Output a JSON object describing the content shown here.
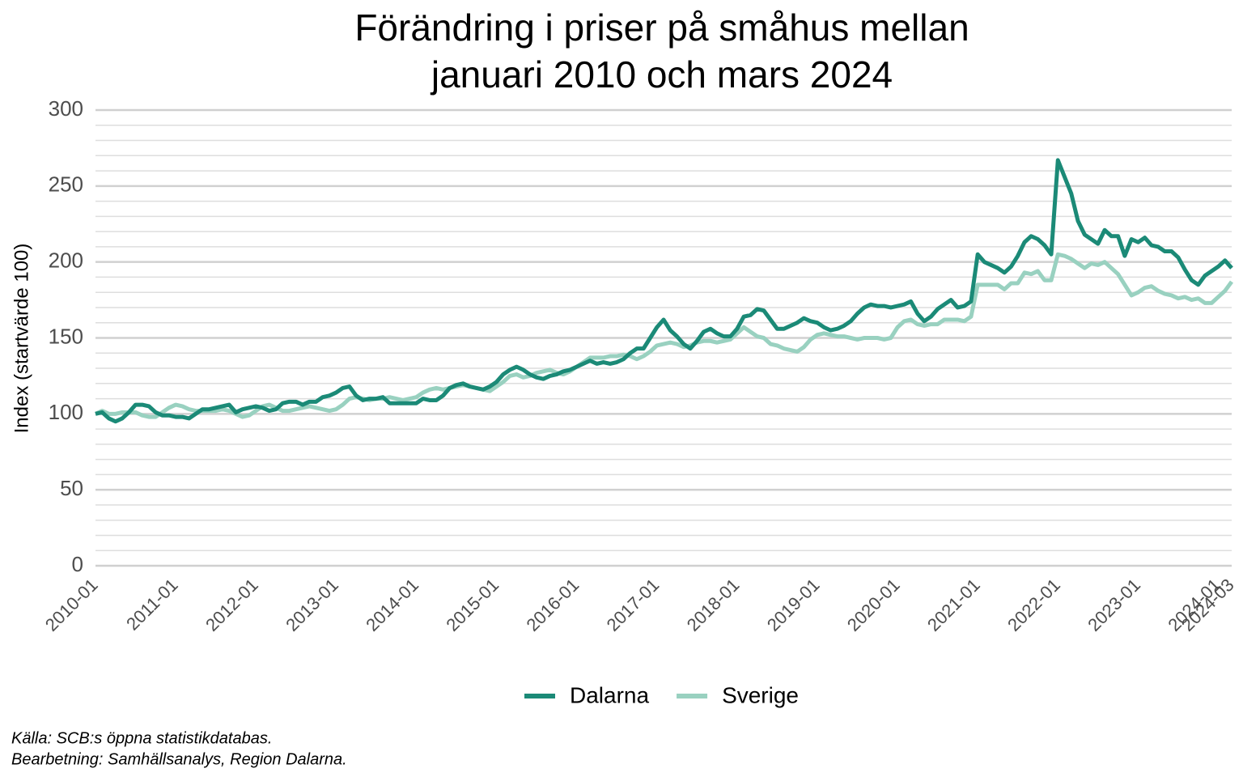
{
  "chart_data": {
    "type": "line",
    "title": [
      "Förändring i priser på småhus mellan",
      "januari 2010 och mars 2024"
    ],
    "y_label": "Index (startvärde 100)",
    "caption": [
      "Källa: SCB:s öppna statistikdatabas.",
      "Bearbetning: Samhällsanalys, Region Dalarna."
    ],
    "x": [
      "2010-01",
      "2010-02",
      "2010-03",
      "2010-04",
      "2010-05",
      "2010-06",
      "2010-07",
      "2010-08",
      "2010-09",
      "2010-10",
      "2010-11",
      "2010-12",
      "2011-01",
      "2011-02",
      "2011-03",
      "2011-04",
      "2011-05",
      "2011-06",
      "2011-07",
      "2011-08",
      "2011-09",
      "2011-10",
      "2011-11",
      "2011-12",
      "2012-01",
      "2012-02",
      "2012-03",
      "2012-04",
      "2012-05",
      "2012-06",
      "2012-07",
      "2012-08",
      "2012-09",
      "2012-10",
      "2012-11",
      "2012-12",
      "2013-01",
      "2013-02",
      "2013-03",
      "2013-04",
      "2013-05",
      "2013-06",
      "2013-07",
      "2013-08",
      "2013-09",
      "2013-10",
      "2013-11",
      "2013-12",
      "2014-01",
      "2014-02",
      "2014-03",
      "2014-04",
      "2014-05",
      "2014-06",
      "2014-07",
      "2014-08",
      "2014-09",
      "2014-10",
      "2014-11",
      "2014-12",
      "2015-01",
      "2015-02",
      "2015-03",
      "2015-04",
      "2015-05",
      "2015-06",
      "2015-07",
      "2015-08",
      "2015-09",
      "2015-10",
      "2015-11",
      "2015-12",
      "2016-01",
      "2016-02",
      "2016-03",
      "2016-04",
      "2016-05",
      "2016-06",
      "2016-07",
      "2016-08",
      "2016-09",
      "2016-10",
      "2016-11",
      "2016-12",
      "2017-01",
      "2017-02",
      "2017-03",
      "2017-04",
      "2017-05",
      "2017-06",
      "2017-07",
      "2017-08",
      "2017-09",
      "2017-10",
      "2017-11",
      "2017-12",
      "2018-01",
      "2018-02",
      "2018-03",
      "2018-04",
      "2018-05",
      "2018-06",
      "2018-07",
      "2018-08",
      "2018-09",
      "2018-10",
      "2018-11",
      "2018-12",
      "2019-01",
      "2019-02",
      "2019-03",
      "2019-04",
      "2019-05",
      "2019-06",
      "2019-07",
      "2019-08",
      "2019-09",
      "2019-10",
      "2019-11",
      "2019-12",
      "2020-01",
      "2020-02",
      "2020-03",
      "2020-04",
      "2020-05",
      "2020-06",
      "2020-07",
      "2020-08",
      "2020-09",
      "2020-10",
      "2020-11",
      "2020-12",
      "2021-01",
      "2021-02",
      "2021-03",
      "2021-04",
      "2021-05",
      "2021-06",
      "2021-07",
      "2021-08",
      "2021-09",
      "2021-10",
      "2021-11",
      "2021-12",
      "2022-01",
      "2022-02",
      "2022-03",
      "2022-04",
      "2022-05",
      "2022-06",
      "2022-07",
      "2022-08",
      "2022-09",
      "2022-10",
      "2022-11",
      "2022-12",
      "2023-01",
      "2023-02",
      "2023-03",
      "2023-04",
      "2023-05",
      "2023-06",
      "2023-07",
      "2023-08",
      "2023-09",
      "2023-10",
      "2023-11",
      "2023-12",
      "2024-01",
      "2024-02",
      "2024-03"
    ],
    "xticks": [
      "2010-01",
      "2011-01",
      "2012-01",
      "2013-01",
      "2014-01",
      "2015-01",
      "2016-01",
      "2017-01",
      "2018-01",
      "2019-01",
      "2020-01",
      "2021-01",
      "2022-01",
      "2023-01",
      "2024-01",
      "2024-03"
    ],
    "series": [
      {
        "name": "Dalarna",
        "color": "#1b8a77",
        "values": [
          100,
          101,
          97,
          95,
          97,
          101,
          106,
          106,
          105,
          101,
          99,
          99,
          98,
          98,
          97,
          100,
          103,
          103,
          104,
          105,
          106,
          101,
          103,
          104,
          105,
          104,
          102,
          103,
          107,
          108,
          108,
          106,
          108,
          108,
          111,
          112,
          114,
          117,
          118,
          112,
          109,
          110,
          110,
          111,
          107,
          107,
          107,
          107,
          107,
          110,
          109,
          109,
          112,
          117,
          119,
          120,
          118,
          117,
          116,
          118,
          121,
          126,
          129,
          131,
          129,
          126,
          124,
          123,
          125,
          126,
          128,
          129,
          131,
          133,
          135,
          133,
          134,
          133,
          134,
          136,
          140,
          143,
          143,
          150,
          157,
          162,
          155,
          151,
          146,
          143,
          148,
          154,
          156,
          153,
          151,
          151,
          156,
          164,
          165,
          169,
          168,
          162,
          156,
          156,
          158,
          160,
          163,
          161,
          160,
          157,
          155,
          156,
          158,
          161,
          166,
          170,
          172,
          171,
          171,
          170,
          171,
          172,
          174,
          166,
          161,
          164,
          169,
          172,
          175,
          170,
          171,
          174,
          205,
          200,
          198,
          196,
          193,
          197,
          204,
          213,
          217,
          215,
          211,
          205,
          267,
          256,
          245,
          227,
          218,
          215,
          212,
          221,
          217,
          217,
          204,
          215,
          213,
          216,
          211,
          210,
          207,
          207,
          203,
          195,
          188,
          185,
          191,
          194,
          197,
          201,
          196
        ]
      },
      {
        "name": "Sverige",
        "color": "#99d1c0",
        "values": [
          100,
          102,
          100,
          100,
          101,
          101,
          101,
          99,
          98,
          98,
          101,
          104,
          106,
          105,
          103,
          102,
          102,
          102,
          102,
          103,
          102,
          100,
          98,
          99,
          102,
          105,
          106,
          104,
          102,
          102,
          103,
          104,
          105,
          104,
          103,
          102,
          103,
          106,
          110,
          111,
          110,
          109,
          110,
          110,
          111,
          110,
          109,
          110,
          111,
          114,
          116,
          117,
          116,
          117,
          118,
          119,
          118,
          117,
          116,
          115,
          118,
          121,
          125,
          126,
          124,
          125,
          127,
          128,
          129,
          127,
          126,
          128,
          131,
          134,
          137,
          137,
          137,
          138,
          138,
          139,
          138,
          136,
          138,
          141,
          145,
          146,
          147,
          146,
          144,
          145,
          147,
          148,
          148,
          147,
          148,
          149,
          153,
          157,
          154,
          151,
          150,
          146,
          145,
          143,
          142,
          141,
          144,
          149,
          152,
          153,
          152,
          151,
          151,
          150,
          149,
          150,
          150,
          150,
          149,
          150,
          157,
          161,
          162,
          159,
          158,
          159,
          159,
          162,
          162,
          162,
          161,
          164,
          185,
          185,
          185,
          185,
          182,
          186,
          186,
          193,
          192,
          194,
          188,
          188,
          205,
          204,
          202,
          199,
          196,
          199,
          198,
          200,
          196,
          192,
          185,
          178,
          180,
          183,
          184,
          181,
          179,
          178,
          176,
          177,
          175,
          176,
          173,
          173,
          177,
          181,
          187
        ]
      }
    ],
    "ylim": [
      0,
      300
    ],
    "yticks": [
      0,
      50,
      100,
      150,
      200,
      250,
      300
    ],
    "grid": true,
    "legend": "bottom"
  }
}
